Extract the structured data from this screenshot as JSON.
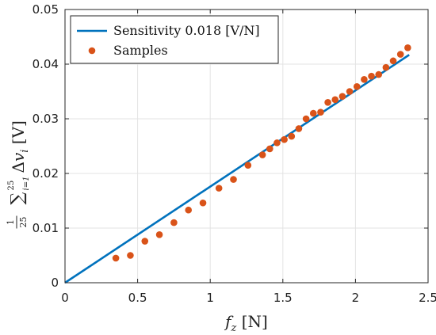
{
  "chart_data": {
    "type": "scatter",
    "title": "",
    "xlabel": "f_z [N]",
    "ylabel": "1/25 Σ_{i=1}^{25} Δv_i [V]",
    "xlim": [
      0,
      2.5
    ],
    "ylim": [
      0,
      0.05
    ],
    "xticks": [
      0,
      0.5,
      1,
      1.5,
      2,
      2.5
    ],
    "yticks": [
      0,
      0.01,
      0.02,
      0.03,
      0.04,
      0.05
    ],
    "xtick_labels": [
      "0",
      "0.5",
      "1",
      "1.5",
      "2",
      "2.5"
    ],
    "ytick_labels": [
      "0",
      "0.01",
      "0.02",
      "0.03",
      "0.04",
      "0.05"
    ],
    "grid": true,
    "legend_position": "top-left",
    "series": [
      {
        "name": "Sensitivity 0.018 [V/N]",
        "type": "line",
        "color": "#0072BD",
        "x": [
          0,
          2.37
        ],
        "y": [
          0,
          0.0417
        ]
      },
      {
        "name": "Samples",
        "type": "scatter",
        "color": "#D95319",
        "x": [
          0.35,
          0.45,
          0.55,
          0.65,
          0.75,
          0.85,
          0.95,
          1.06,
          1.16,
          1.26,
          1.36,
          1.41,
          1.46,
          1.51,
          1.56,
          1.61,
          1.66,
          1.71,
          1.76,
          1.81,
          1.86,
          1.91,
          1.96,
          2.01,
          2.06,
          2.11,
          2.16,
          2.21,
          2.26,
          2.31,
          2.36
        ],
        "y": [
          0.0045,
          0.005,
          0.0076,
          0.0088,
          0.011,
          0.0133,
          0.0146,
          0.0173,
          0.0189,
          0.0215,
          0.0234,
          0.0245,
          0.0256,
          0.0262,
          0.0268,
          0.0282,
          0.03,
          0.031,
          0.0312,
          0.033,
          0.0335,
          0.0341,
          0.035,
          0.0359,
          0.0372,
          0.0378,
          0.0381,
          0.0394,
          0.0406,
          0.0418,
          0.043
        ]
      }
    ]
  }
}
